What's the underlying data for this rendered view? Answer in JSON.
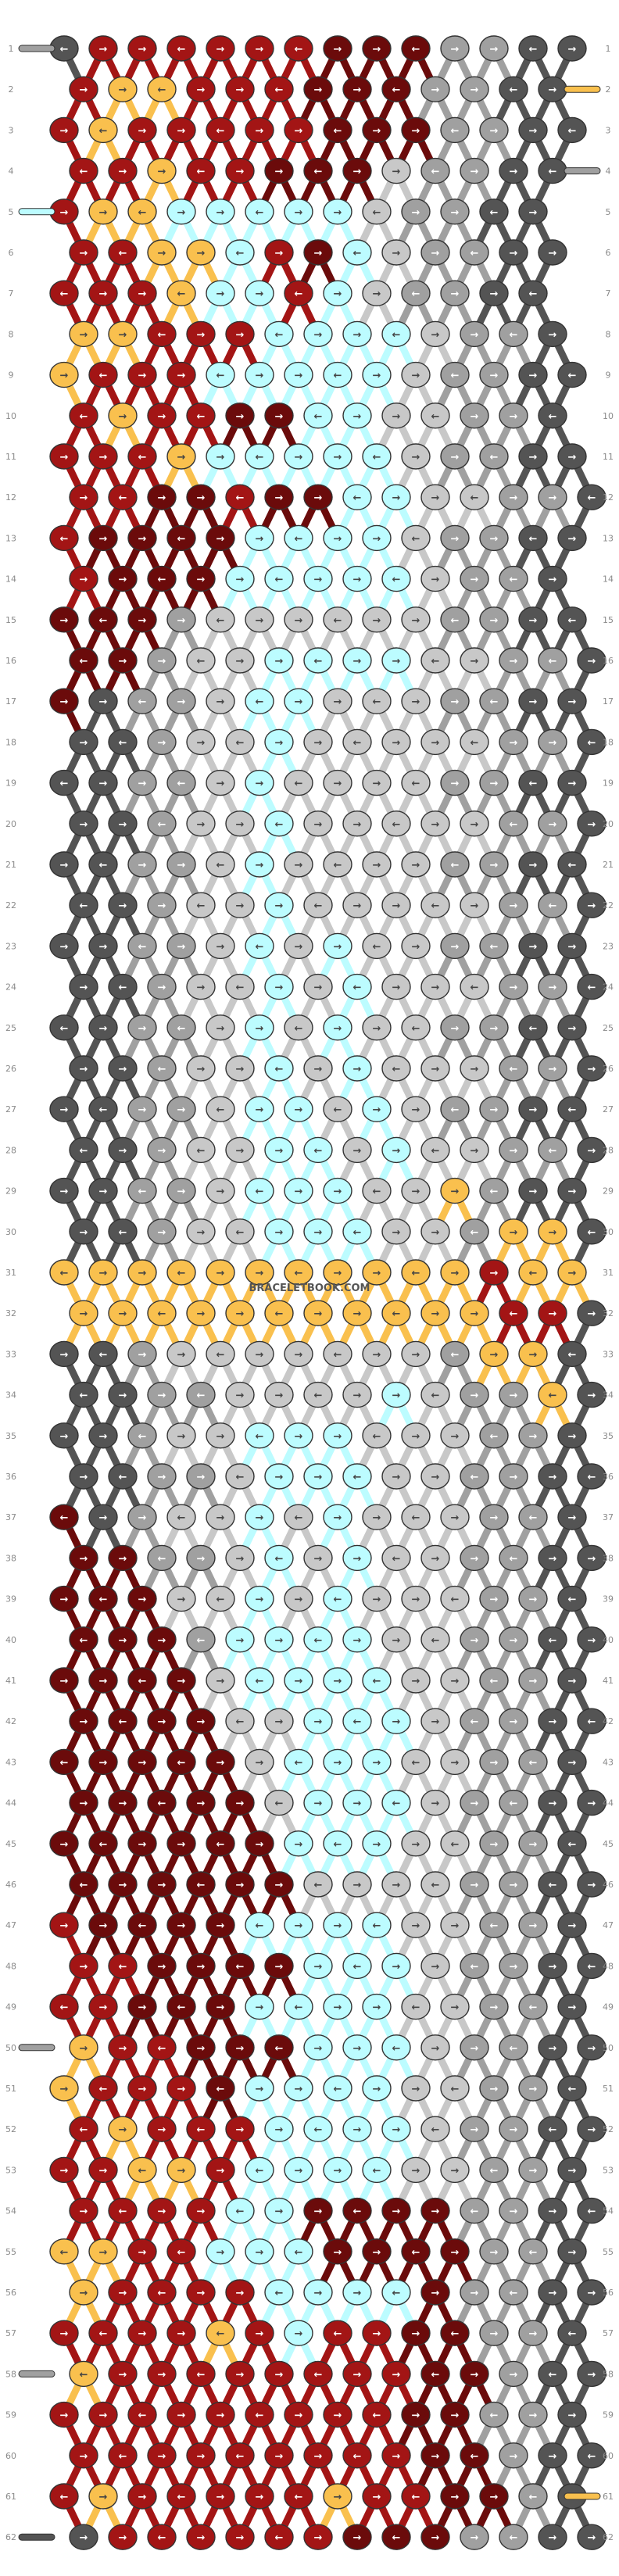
{
  "diagram": {
    "type": "alpha-bracelet-pattern",
    "watermark": "BRACELETBOOK.COM",
    "rows": 62,
    "knots_per_row_even": 14,
    "colors": {
      "A": "#a31515",
      "B": "#f9c04e",
      "C": "#6b0b0b",
      "D": "#a0a0a0",
      "E": "#bcfcff",
      "F": "#c8c8c8",
      "G": "#545454"
    },
    "string_start_colors": [
      "G",
      "A",
      "A",
      "A",
      "A",
      "A",
      "A",
      "C",
      "C",
      "C",
      "D",
      "D",
      "G",
      "G"
    ],
    "row_markers": {
      "1": {
        "left": "D",
        "right": null
      },
      "2": {
        "left": null,
        "right": "B"
      },
      "4": {
        "left": null,
        "right": "D"
      },
      "5": {
        "left": "E",
        "right": null
      },
      "50": {
        "left": "D",
        "right": null
      },
      "58": {
        "left": "D",
        "right": null
      },
      "61": {
        "left": null,
        "right": "B"
      },
      "62": {
        "left": "G",
        "right": null
      }
    },
    "pattern_rows": [
      "GAAAAAACCCDDGG",
      "ABBAAACCCDDGG",
      "ABAAAAACCCDDGG",
      "AABAACCCFDDGG",
      "ABBEEEEEFDDGG",
      "AABBEACEFDDGG",
      "AAABEEAEFDDGG",
      "BBAAAEEEEFDDG",
      "BAAAEEEEEFDDGG",
      "ABAACCEEFFDDG",
      "AAABEEEEEFDDGG",
      "AACCACCEEFFDDG",
      "ACCCCEEEEFDDGG",
      "ACCCEEEEEFDDG",
      "CCCDFFFFFFDDGG",
      "CCDFFEEEEFFDDG",
      "CGDDFEEFFFDDGG",
      "GGDFFEFFFFFDDG",
      "GGDDFEFFFFDDGG",
      "GGDFFEFFFFFDDG",
      "GGDDFEFFFFDDGG",
      "GGDFFEFFFFFDDG",
      "GGDDFEFEFFDDGG",
      "GGDFFEFEFFFDDG",
      "GGDDFEFEFFDDGG",
      "GGDFFEFEFFFDDG",
      "GGDDFEEFEFDDGG",
      "GGDFFEEFEFFDDG",
      "GGDDFEEEFFBDGG",
      "GGDFFEEEFFDBBG",
      "BBBBBBBBBBBABB",
      "BBBBBBBBBBBAAG",
      "GGDFFFFFFFDBBG",
      "GGDDFFFFEFDDBG",
      "GGDFFEEEFFFDDG",
      "GGDDFEEEFFDDGG",
      "CGDFFEFEFFFDDG",
      "CCDDFEFEFFDDGG",
      "CCCFFEFEFFFDDG",
      "CCCDEEEEFFDDGG",
      "CCCCFEEEEFFDDG",
      "CCCCFFEEEFDDGG",
      "CCCCCFEEEFFDDG",
      "CCCCCFEEEFDDGG",
      "CCCCCCEEEFFDDG",
      "CCCCCCFFFFDDGG",
      "ACCCCEEEEFFDDG",
      "AACCCCEEEFDDGG",
      "AACCCEEEEFFDDG",
      "BAACCCEEEFDDGG",
      "BAAACEEEEFFDDG",
      "ABAAAEEEEFDDGG",
      "AABBAEEEEFFDDG",
      "AAAAEECCCCDDGG",
      "BBAAEEECCCCDDG",
      "BAAAAEEEECDDGG",
      "AAAABAEAACCDDG",
      "BAAAAAAAACCDGG",
      "AAAAAAAAACCDDG",
      "AAAAAAAAACCDGG",
      "ABAAAAABAACCDG",
      "GAAAAAACCCDDGG"
    ],
    "knot_arrow_glyphs": {
      "f": "→",
      "b": "←",
      "fb": "⇁",
      "bf": "↼"
    }
  }
}
